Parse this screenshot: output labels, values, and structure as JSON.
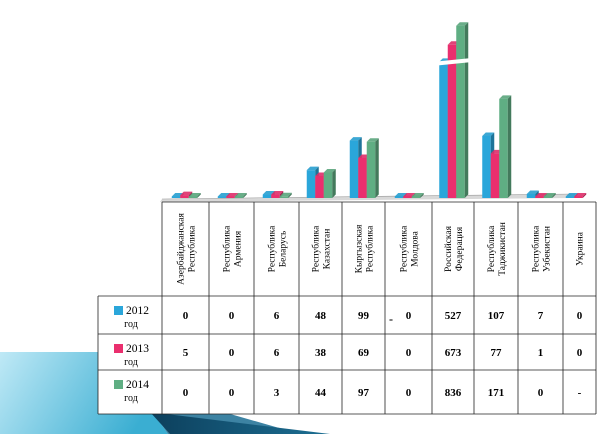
{
  "chart_data": {
    "type": "bar",
    "categories": [
      "Азербайджанская Республика",
      "Республика Армения",
      "Республика Беларусь",
      "Республика Казахстан",
      "Кыргызская Республика",
      "Республика Молдова",
      "Российская Федерация",
      "Республика Таджикистан",
      "Республика Узбекистан",
      "Украина"
    ],
    "category_lines": [
      [
        "Азербайджанская",
        "Республика"
      ],
      [
        "Республика",
        "Армения"
      ],
      [
        "Республика",
        "Беларусь"
      ],
      [
        "Республика",
        "Казахстан"
      ],
      [
        "Кыргызская",
        "Республика"
      ],
      [
        "Республика",
        "Молдова"
      ],
      [
        "Российская",
        "Федерация"
      ],
      [
        "Республика",
        "Таджикистан"
      ],
      [
        "Республика",
        "Узбекистан"
      ],
      [
        "Украина"
      ]
    ],
    "series": [
      {
        "year": "2012",
        "unit": "год",
        "color": "#2aa6da",
        "values": [
          0,
          0,
          6,
          48,
          99,
          0,
          527,
          107,
          7,
          0
        ],
        "labels": [
          "0",
          "0",
          "6",
          "48",
          "99",
          "0",
          "527",
          "107",
          "7",
          "0"
        ]
      },
      {
        "year": "2013",
        "unit": "год",
        "color": "#ea2f6e",
        "values": [
          5,
          0,
          6,
          38,
          69,
          0,
          673,
          77,
          1,
          0
        ],
        "labels": [
          "5",
          "0",
          "6",
          "38",
          "69",
          "0",
          "673",
          "77",
          "1",
          "0"
        ]
      },
      {
        "year": "2014",
        "unit": "год",
        "color": "#5fae83",
        "values": [
          0,
          0,
          3,
          44,
          97,
          0,
          836,
          171,
          0,
          null
        ],
        "labels": [
          "0",
          "0",
          "3",
          "44",
          "97",
          "0",
          "836",
          "171",
          "0",
          "-"
        ]
      }
    ],
    "stray_mark": "-",
    "axis_break": "Российская Федерация"
  }
}
